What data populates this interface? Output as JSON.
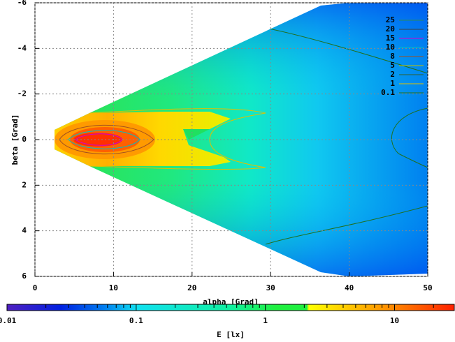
{
  "chart_data": {
    "type": "heatmap",
    "xlabel": "alpha [Grad]",
    "ylabel": "beta [Grad]",
    "xlim": [
      0,
      50
    ],
    "xticks": [
      0,
      10,
      20,
      30,
      40,
      50
    ],
    "ylim": [
      -6,
      6
    ],
    "yticks": [
      -6,
      -4,
      -2,
      0,
      2,
      4,
      6
    ],
    "grid": true,
    "contours": [
      {
        "level": 25,
        "color": "#2e8b57"
      },
      {
        "level": 20,
        "color": "#404040"
      },
      {
        "level": 15,
        "color": "#d000d0"
      },
      {
        "level": 10,
        "color": "#00c0c0"
      },
      {
        "level": 8,
        "color": "#a05020"
      },
      {
        "level": 5,
        "color": "#c0c000"
      },
      {
        "level": 2,
        "color": "#306030"
      },
      {
        "level": 1,
        "color": "#e0c000"
      },
      {
        "level": 0.1,
        "color": "#207020"
      }
    ],
    "colorbar": {
      "label": "E [lx]",
      "log": true,
      "lim": [
        0.01,
        29
      ],
      "ticks": [
        0.01,
        0.1,
        1,
        10
      ]
    }
  }
}
